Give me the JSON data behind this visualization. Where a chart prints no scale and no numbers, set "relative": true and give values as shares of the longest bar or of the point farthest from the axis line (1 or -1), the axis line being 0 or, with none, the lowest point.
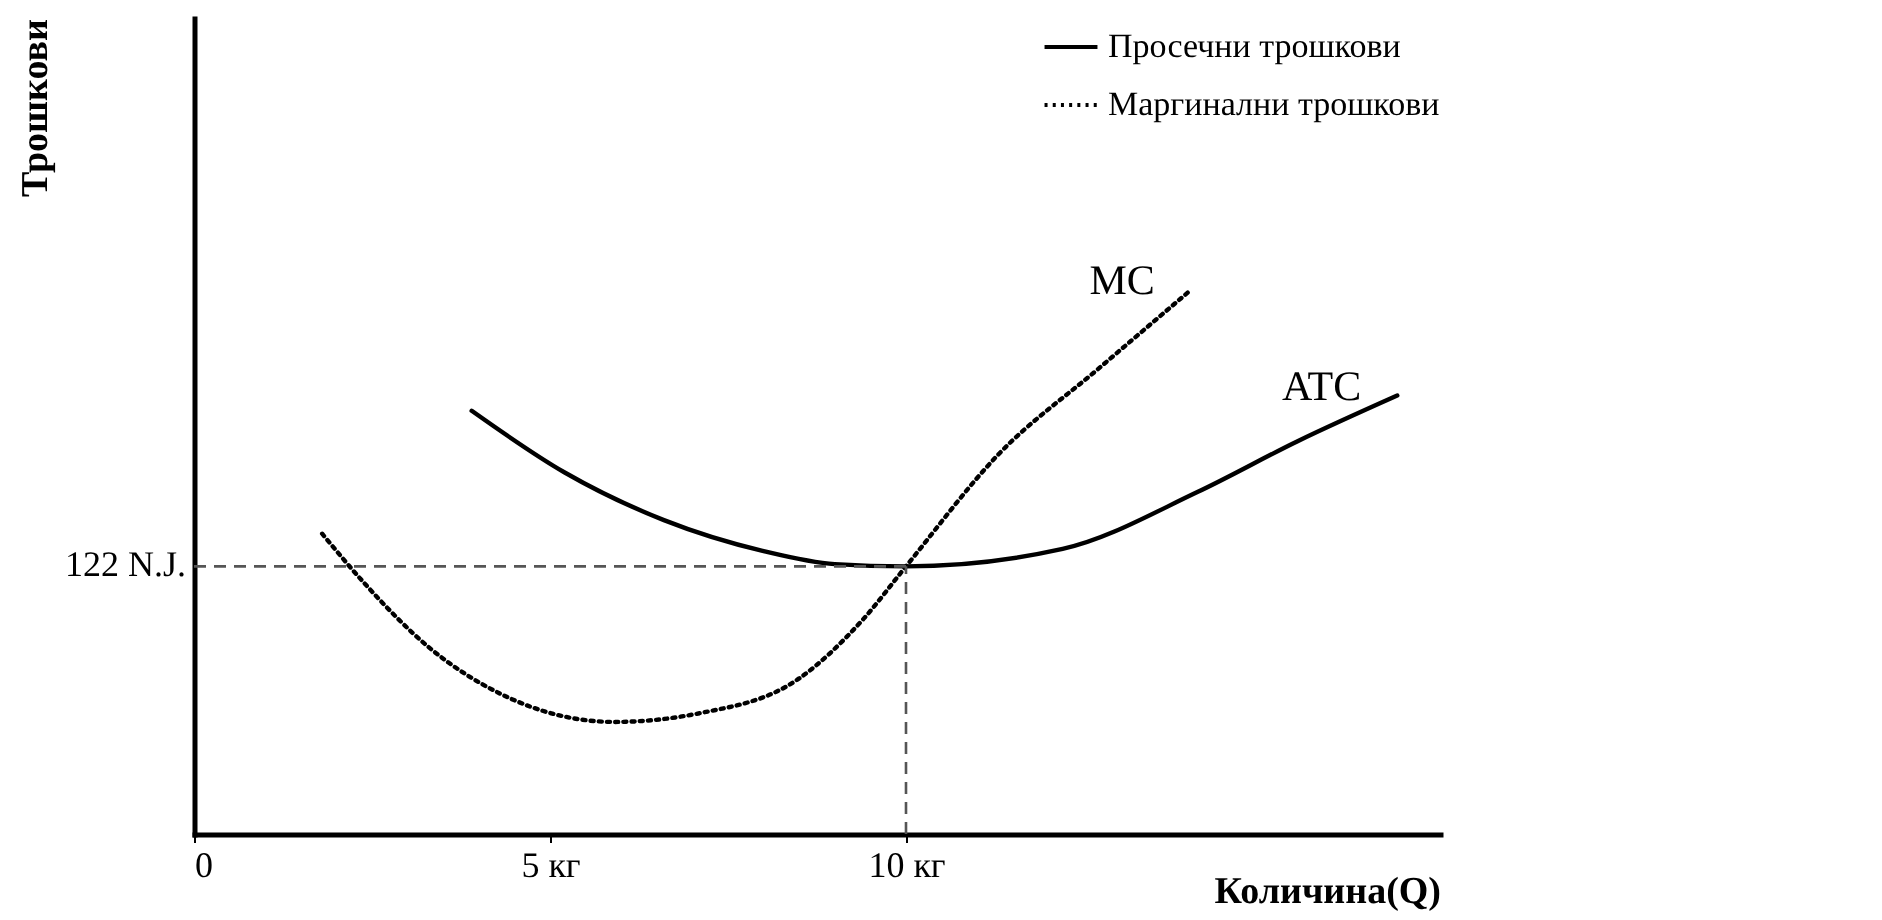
{
  "chart_data": {
    "type": "line",
    "xlabel": "Количина(Q)",
    "ylabel": "Трошкови",
    "relative": true,
    "xlim": [
      0,
      17.5
    ],
    "xticks": [
      0,
      {
        "value": 5,
        "label": "5 кг"
      },
      {
        "value": 10,
        "label": "10 кг"
      }
    ],
    "series": [
      {
        "name": "Просечни трошкови",
        "color": "#000000",
        "line_style": "solid",
        "x": [
          3.9,
          5.2,
          6.6,
          8.0,
          9.0,
          10,
          12.2,
          14.1,
          15.5,
          16.9
        ],
        "values": [
          0.778,
          0.665,
          0.577,
          0.52,
          0.496,
          0.492,
          0.524,
          0.629,
          0.722,
          0.806
        ]
      },
      {
        "name": "Маргинални трошкови",
        "color": "#000000",
        "line_style": "dotted",
        "x": [
          1.8,
          2.4,
          3.3,
          4.3,
          5.9,
          7.1,
          8.5,
          9.4,
          10,
          11.3,
          12.7,
          14.0
        ],
        "values": [
          0.552,
          0.46,
          0.343,
          0.258,
          0.206,
          0.222,
          0.286,
          0.395,
          0.492,
          0.698,
          0.855,
          1
        ]
      }
    ],
    "ref_lines": [
      {
        "axis": "y",
        "value": 0.492,
        "label": "122 N.J.",
        "color": "#555555",
        "line_style": "dashed"
      },
      {
        "axis": "x",
        "value": 10,
        "color": "#555555",
        "line_style": "dashed"
      }
    ],
    "annotations": [
      {
        "text": "MC",
        "x": 14.0,
        "y": 1
      },
      {
        "text": "ATC",
        "x": 16.9,
        "y": 0.806
      }
    ],
    "grid": false,
    "marker": "none",
    "legend": "top right"
  }
}
